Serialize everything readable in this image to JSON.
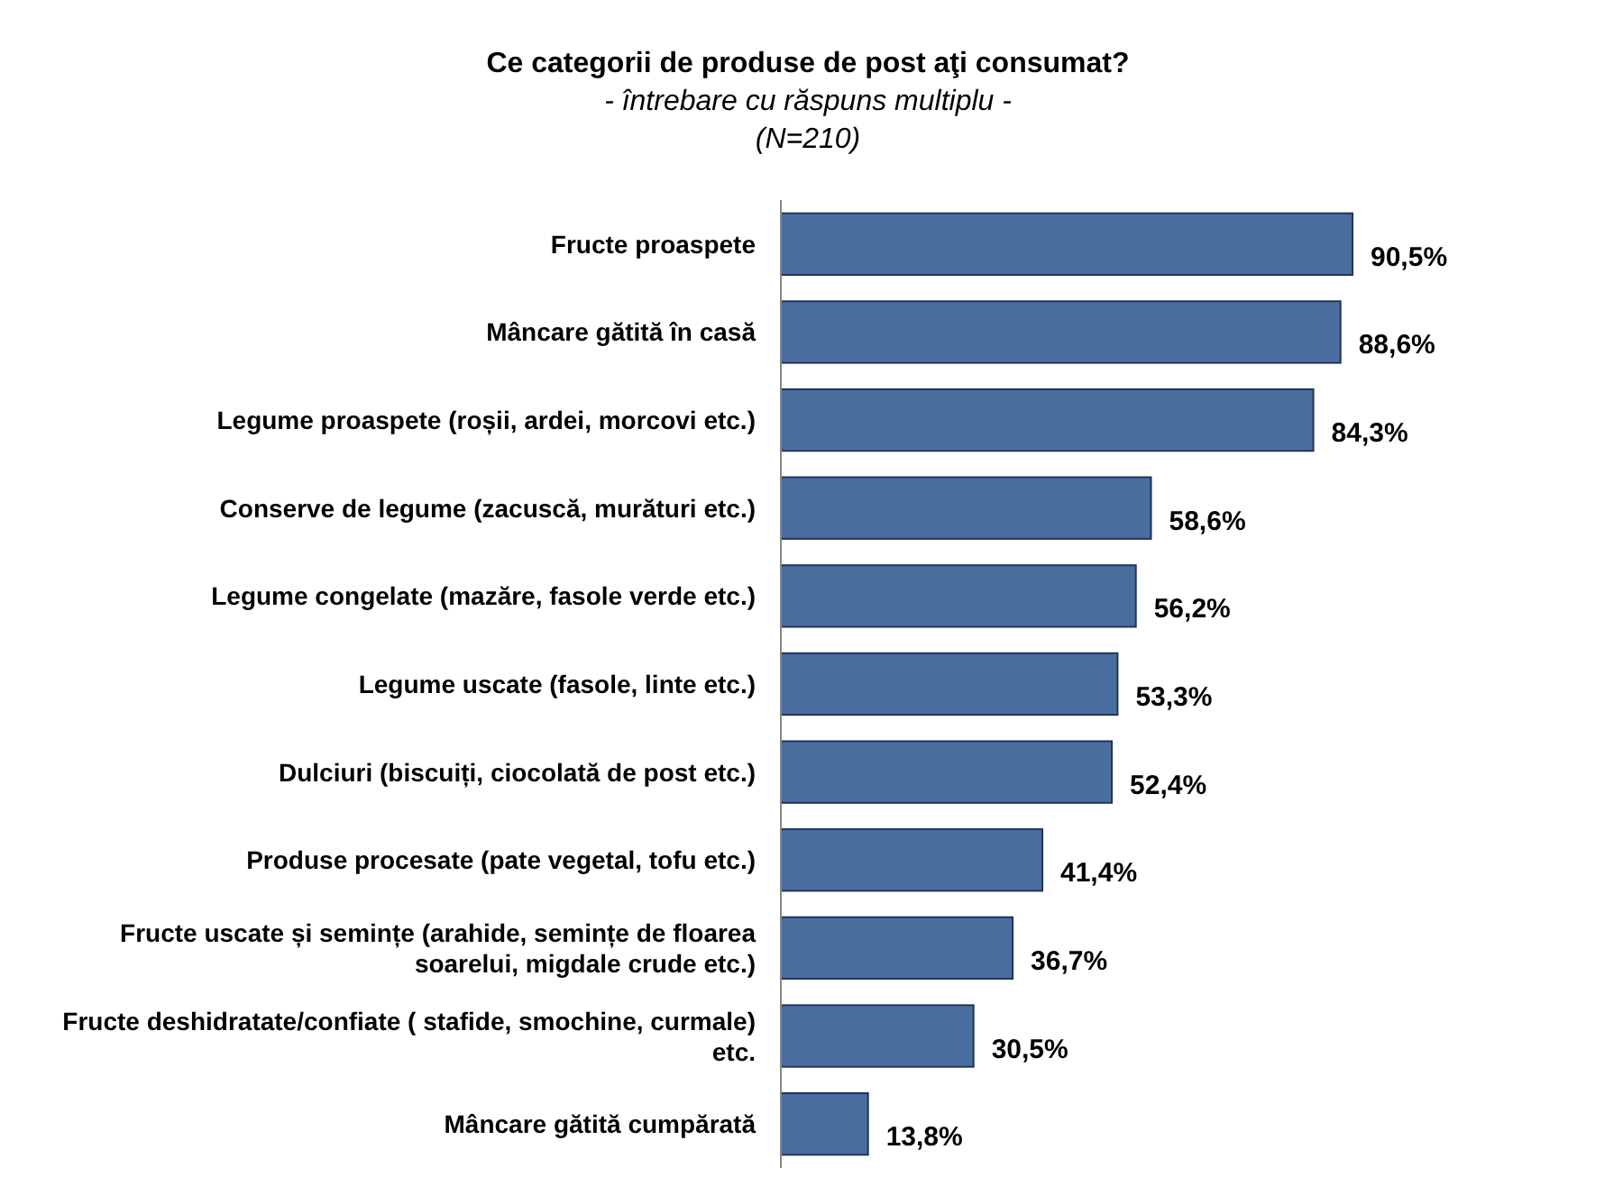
{
  "chart_data": {
    "type": "bar",
    "orientation": "horizontal",
    "title": "Ce categorii de produse de post aţi consumat?",
    "subtitle": "- întrebare cu răspuns multiplu -\n(N=210)",
    "categories": [
      "Fructe proaspete",
      "Mâncare gătită în casă",
      "Legume proaspete (roșii, ardei, morcovi etc.)",
      "Conserve de legume (zacuscă, murături etc.)",
      "Legume congelate (mazăre, fasole verde etc.)",
      "Legume uscate (fasole, linte etc.)",
      "Dulciuri (biscuiți, ciocolată de post etc.)",
      "Produse procesate (pate vegetal, tofu etc.)",
      "Fructe uscate și semințe (arahide, semințe de floarea soarelui, migdale crude etc.)",
      "Fructe deshidratate/confiate ( stafide, smochine, curmale) etc.",
      "Mâncare gătită cumpărată"
    ],
    "values": [
      90.5,
      88.6,
      84.3,
      58.6,
      56.2,
      53.3,
      52.4,
      41.4,
      36.7,
      30.5,
      13.8
    ],
    "value_labels": [
      "90,5%",
      "88,6%",
      "84,3%",
      "58,6%",
      "56,2%",
      "53,3%",
      "52,4%",
      "41,4%",
      "36,7%",
      "30,5%",
      "13,8%"
    ],
    "color": "#4a6ea0"
  }
}
